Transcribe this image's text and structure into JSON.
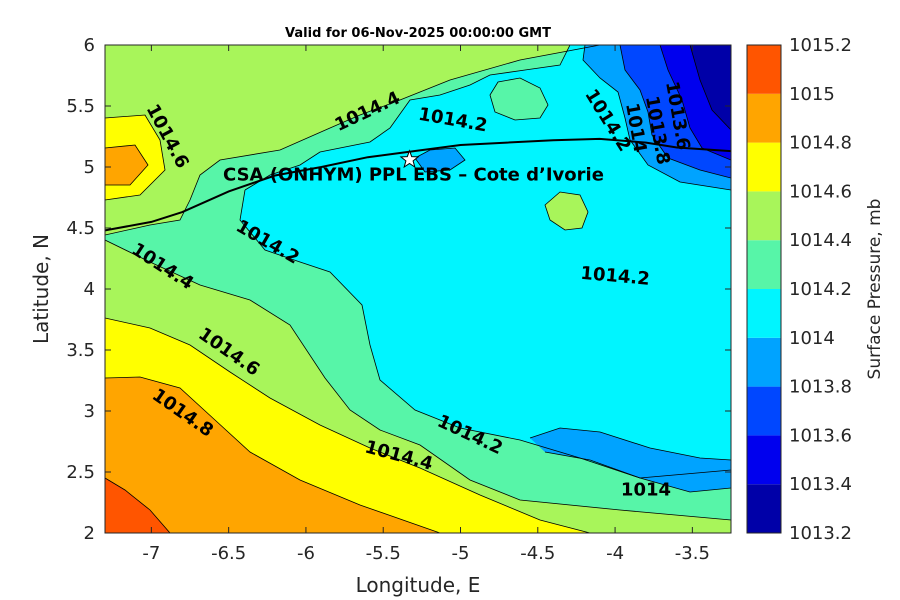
{
  "chart_data": {
    "type": "contour",
    "title": "Valid for 06-Nov-2025 00:00:00 GMT",
    "xlabel": "Longitude, E",
    "ylabel": "Latitude, N",
    "xlim": [
      -7.3,
      -3.25
    ],
    "ylim": [
      2,
      6
    ],
    "xticks": [
      -7,
      -6.5,
      -6,
      -5.5,
      -5,
      -4.5,
      -4,
      -3.5
    ],
    "yticks": [
      2,
      2.5,
      3,
      3.5,
      4,
      4.5,
      5,
      5.5,
      6
    ],
    "colorbar": {
      "label": "Surface Pressure, mb",
      "levels": [
        1013.2,
        1013.4,
        1013.6,
        1013.8,
        1014,
        1014.2,
        1014.4,
        1014.6,
        1014.8,
        1015,
        1015.2
      ],
      "colors": [
        "#0000a8",
        "#0000ee",
        "#0047ff",
        "#00a3ff",
        "#00f5ff",
        "#57f5a8",
        "#a8f55a",
        "#ffff00",
        "#ffa500",
        "#ff5500",
        "#ff0000"
      ]
    },
    "contour_labels": [
      {
        "text": "1014.6",
        "x": -6.9,
        "y": 5.25,
        "angle": 62
      },
      {
        "text": "1014.4",
        "x": -5.6,
        "y": 5.45,
        "angle": -25
      },
      {
        "text": "1014.2",
        "x": -5.05,
        "y": 5.38,
        "angle": 10
      },
      {
        "text": "1014.2",
        "x": -4.05,
        "y": 5.38,
        "angle": 58
      },
      {
        "text": "1014",
        "x": -3.87,
        "y": 5.32,
        "angle": 80
      },
      {
        "text": "1013.8",
        "x": -3.73,
        "y": 5.3,
        "angle": 80
      },
      {
        "text": "1013.6",
        "x": -3.6,
        "y": 5.42,
        "angle": 80
      },
      {
        "text": "1014.2",
        "x": -6.25,
        "y": 4.38,
        "angle": 30
      },
      {
        "text": "1014.4",
        "x": -6.93,
        "y": 4.18,
        "angle": 33
      },
      {
        "text": "1014.2",
        "x": -4.0,
        "y": 4.1,
        "angle": 5
      },
      {
        "text": "1014.6",
        "x": -6.5,
        "y": 3.48,
        "angle": 35
      },
      {
        "text": "1014.8",
        "x": -6.8,
        "y": 2.98,
        "angle": 35
      },
      {
        "text": "1014.2",
        "x": -4.94,
        "y": 2.8,
        "angle": 25
      },
      {
        "text": "1014.4",
        "x": -5.4,
        "y": 2.63,
        "angle": 15
      },
      {
        "text": "1014",
        "x": -3.8,
        "y": 2.35,
        "angle": 0
      }
    ],
    "station": {
      "label": "CSA (ONHYM) PPL EBS  – Cote d’Ivorie",
      "lon": -5.33,
      "lat": 5.06,
      "marker": "white-star"
    },
    "coastline": [
      [
        -7.3,
        4.48
      ],
      [
        -7.0,
        4.55
      ],
      [
        -6.8,
        4.63
      ],
      [
        -6.5,
        4.8
      ],
      [
        -6.2,
        4.93
      ],
      [
        -5.9,
        5.0
      ],
      [
        -5.6,
        5.08
      ],
      [
        -5.3,
        5.13
      ],
      [
        -5.0,
        5.18
      ],
      [
        -4.7,
        5.2
      ],
      [
        -4.4,
        5.22
      ],
      [
        -4.1,
        5.23
      ],
      [
        -3.8,
        5.2
      ],
      [
        -3.6,
        5.16
      ],
      [
        -3.25,
        5.13
      ]
    ]
  }
}
